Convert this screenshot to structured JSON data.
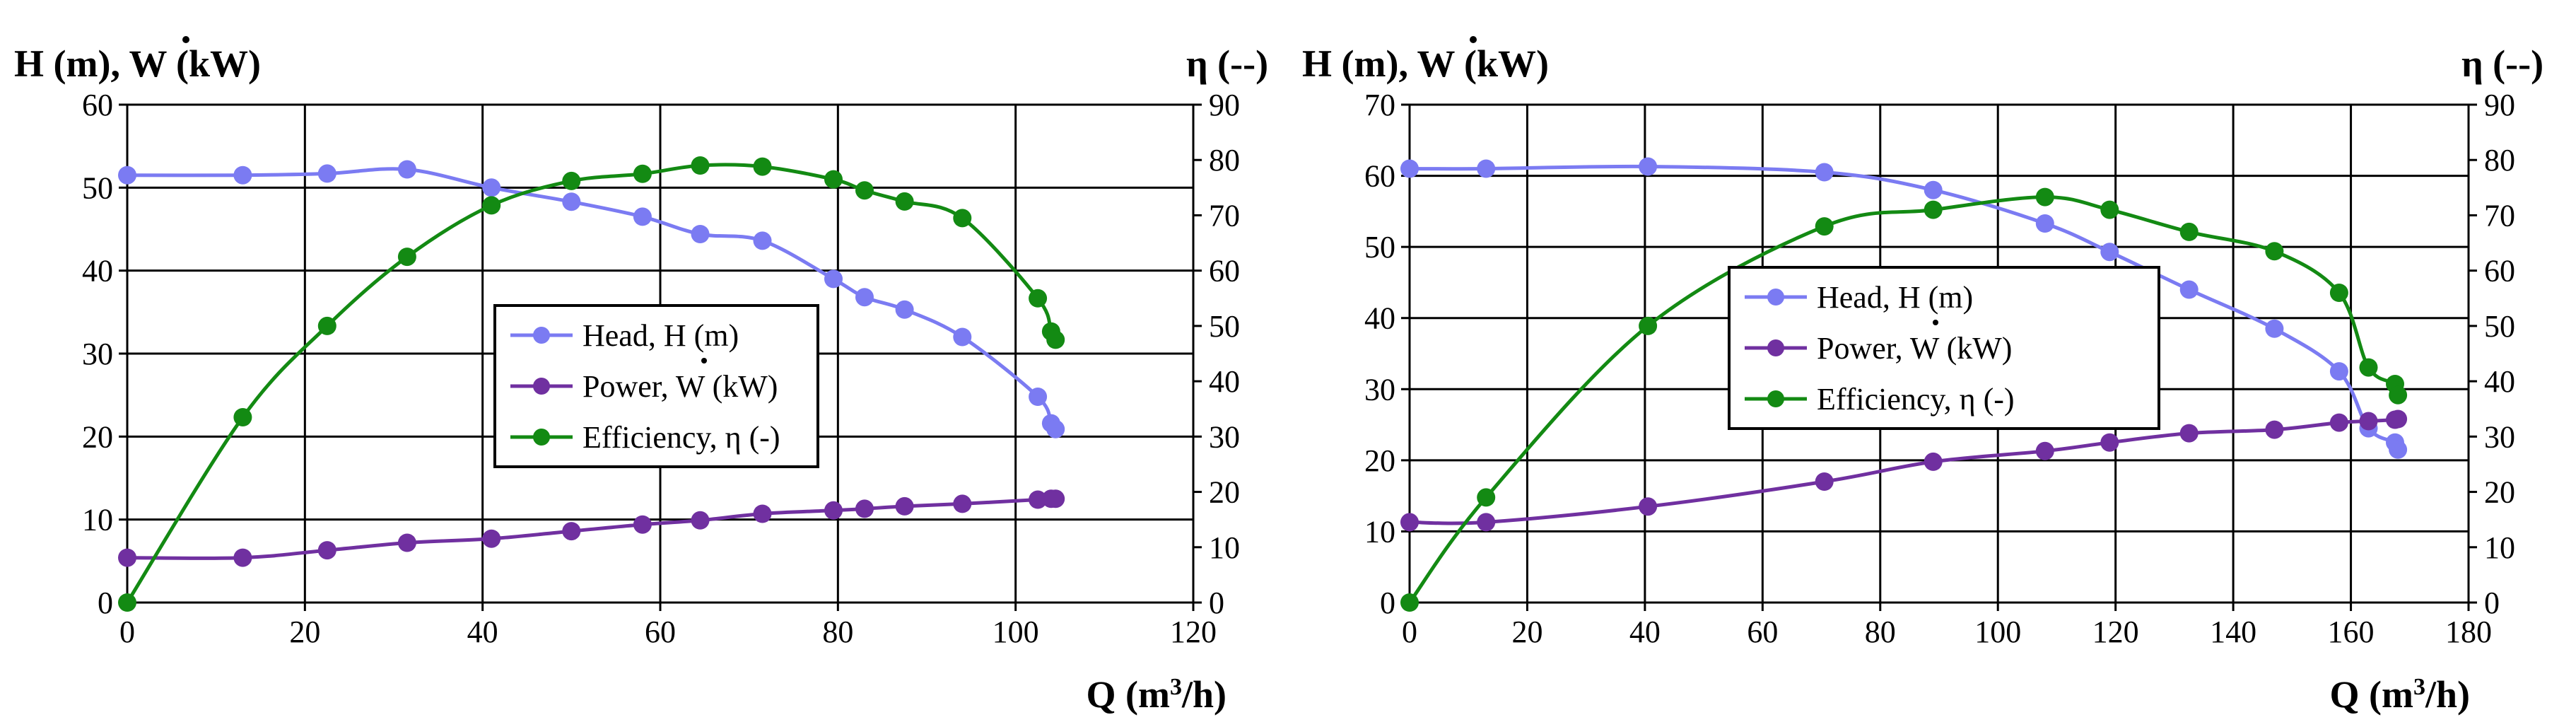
{
  "colors": {
    "head": "#7b7bf2",
    "power": "#7030a0",
    "efficiency": "#138a13",
    "grid": "#000000"
  },
  "chart_data": [
    {
      "type": "line",
      "xlabel_prefix": "Q (m",
      "xlabel_sup": "3",
      "xlabel_suffix": "/h)",
      "ylabel_left_prefix": "H (m), ",
      "ylabel_left_symbol": "W",
      "ylabel_left_suffix": " (kW)",
      "ylabel_right": "η (--)",
      "xlim": [
        0,
        120
      ],
      "ylim_left": [
        0,
        60
      ],
      "ylim_right": [
        0,
        90
      ],
      "x_ticks": [
        "0",
        "20",
        "40",
        "60",
        "80",
        "100",
        "120"
      ],
      "y_ticks_left": [
        "0",
        "10",
        "20",
        "30",
        "40",
        "50",
        "60"
      ],
      "y_ticks_right": [
        "0",
        "10",
        "20",
        "30",
        "40",
        "50",
        "60",
        "70",
        "80",
        "90"
      ],
      "legend": [
        {
          "label_prefix": "Head, H",
          "label_suffix": " (m)"
        },
        {
          "label_prefix": "Power, ",
          "label_symbol": "W",
          "label_suffix": " (kW)"
        },
        {
          "label_prefix": "Efficiency, ",
          "label_symbol": "η",
          "label_suffix": " (-)"
        }
      ],
      "series": [
        {
          "name": "Head",
          "axis": "left",
          "x": [
            0,
            13,
            22.5,
            31.5,
            41,
            50,
            58,
            64.5,
            71.5,
            79.5,
            83,
            87.5,
            94,
            102.5,
            104,
            104.5
          ],
          "y": [
            51.5,
            51.5,
            51.7,
            52.2,
            50,
            48.3,
            46.5,
            44.4,
            43.6,
            39,
            36.8,
            35.3,
            32,
            24.8,
            21.6,
            20.9
          ]
        },
        {
          "name": "Power",
          "axis": "left",
          "x": [
            0,
            13,
            22.5,
            31.5,
            41,
            50,
            58,
            64.5,
            71.5,
            79.5,
            83,
            87.5,
            94,
            102.5,
            104,
            104.5
          ],
          "y": [
            5.4,
            5.4,
            6.3,
            7.2,
            7.7,
            8.6,
            9.4,
            9.9,
            10.7,
            11.1,
            11.3,
            11.6,
            11.9,
            12.4,
            12.5,
            12.5
          ]
        },
        {
          "name": "Efficiency",
          "axis": "right",
          "x": [
            0,
            13,
            22.5,
            31.5,
            41,
            50,
            58,
            64.5,
            71.5,
            79.5,
            83,
            87.5,
            94,
            102.5,
            104,
            104.5
          ],
          "y": [
            0,
            33.5,
            50,
            62.5,
            71.8,
            76.2,
            77.5,
            79,
            78.8,
            76.5,
            74.5,
            72.5,
            69.5,
            55,
            49,
            47.5
          ]
        }
      ]
    },
    {
      "type": "line",
      "xlabel_prefix": "Q (m",
      "xlabel_sup": "3",
      "xlabel_suffix": "/h)",
      "ylabel_left_prefix": "H (m), ",
      "ylabel_left_symbol": "W",
      "ylabel_left_suffix": " (kW)",
      "ylabel_right": "η (--)",
      "xlim": [
        0,
        180
      ],
      "ylim_left": [
        0,
        70
      ],
      "ylim_right": [
        0,
        90
      ],
      "x_ticks": [
        "0",
        "20",
        "40",
        "60",
        "80",
        "100",
        "120",
        "140",
        "160",
        "180"
      ],
      "y_ticks_left": [
        "0",
        "10",
        "20",
        "30",
        "40",
        "50",
        "60",
        "70"
      ],
      "y_ticks_right": [
        "0",
        "10",
        "20",
        "30",
        "40",
        "50",
        "60",
        "70",
        "80",
        "90"
      ],
      "legend": [
        {
          "label_prefix": "Head, H",
          "label_suffix": " (m)"
        },
        {
          "label_prefix": "Power, ",
          "label_symbol": "W",
          "label_suffix": " (kW)"
        },
        {
          "label_prefix": "Efficiency, ",
          "label_symbol": "η",
          "label_suffix": "  (-)"
        }
      ],
      "series": [
        {
          "name": "Head",
          "axis": "left",
          "x": [
            0,
            13,
            40.5,
            70.5,
            89,
            108,
            119,
            132.5,
            147,
            158,
            163,
            167.5,
            168
          ],
          "y": [
            61,
            61,
            61.3,
            60.5,
            58,
            53.3,
            49.3,
            44,
            38.5,
            32.5,
            24.5,
            22.5,
            21.5
          ]
        },
        {
          "name": "Power",
          "axis": "left",
          "x": [
            0,
            13,
            40.5,
            70.5,
            89,
            108,
            119,
            132.5,
            147,
            158,
            163,
            167.5,
            168
          ],
          "y": [
            11.3,
            11.3,
            13.5,
            17,
            19.8,
            21.3,
            22.5,
            23.8,
            24.3,
            25.3,
            25.5,
            25.7,
            25.8
          ]
        },
        {
          "name": "Efficiency",
          "axis": "right",
          "x": [
            0,
            13,
            40.5,
            70.5,
            89,
            108,
            119,
            132.5,
            147,
            158,
            163,
            167.5,
            168
          ],
          "y": [
            0,
            19,
            50,
            68,
            71,
            73.3,
            71,
            67,
            63.5,
            56,
            42.5,
            39.5,
            37.5
          ]
        }
      ]
    }
  ]
}
